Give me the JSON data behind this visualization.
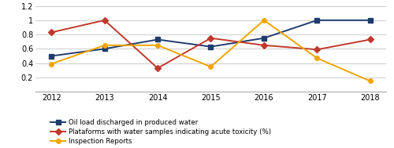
{
  "years": [
    2012,
    2013,
    2014,
    2015,
    2016,
    2017,
    2018
  ],
  "oil_load": [
    0.5,
    0.6,
    0.73,
    0.63,
    0.75,
    1.0,
    1.0
  ],
  "platforms": [
    0.83,
    1.0,
    0.33,
    0.75,
    0.65,
    0.59,
    0.73
  ],
  "inspection": [
    0.39,
    0.65,
    0.65,
    0.35,
    1.0,
    0.47,
    0.15
  ],
  "oil_load_color": "#1F3B6E",
  "platforms_color": "#C0392B",
  "inspection_color": "#F0A500",
  "ylim": [
    0,
    1.2
  ],
  "yticks": [
    0,
    0.2,
    0.4,
    0.6,
    0.8,
    1.0,
    1.2
  ],
  "legend_oil": "Oil load discharged in produced water",
  "legend_platforms": "Plataforms with water samples indicating acute toxicity (%)",
  "legend_inspection": "Inspection Reports",
  "background_color": "#ffffff",
  "grid_color": "#cccccc"
}
